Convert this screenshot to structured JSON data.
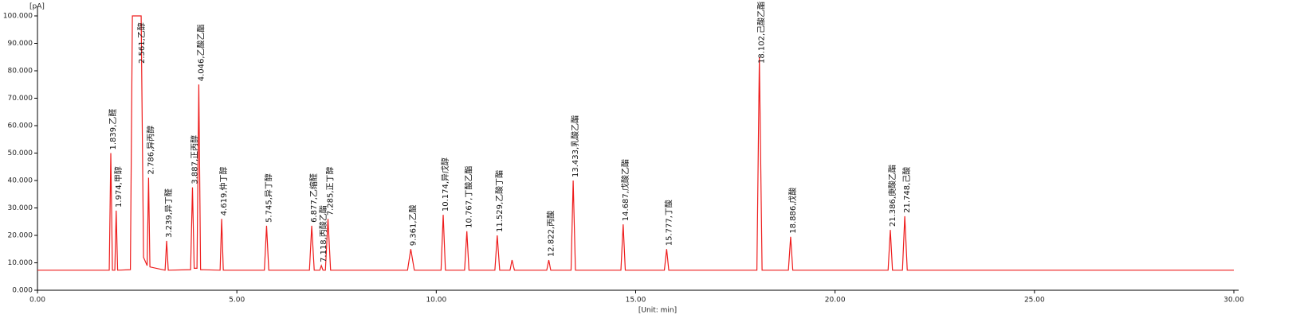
{
  "chart_data": {
    "type": "line",
    "ylabel": "[pA]",
    "xlabel": "[Unit: min]",
    "xlim": [
      0,
      30
    ],
    "ylim": [
      0,
      100
    ],
    "xticks": [
      {
        "value": 0,
        "label": "0.00"
      },
      {
        "value": 5,
        "label": "5.00"
      },
      {
        "value": 10,
        "label": "10.00"
      },
      {
        "value": 15,
        "label": "15.00"
      },
      {
        "value": 20,
        "label": "20.00"
      },
      {
        "value": 25,
        "label": "25.00"
      },
      {
        "value": 30,
        "label": "30.00"
      }
    ],
    "yticks": [
      {
        "value": 0,
        "label": "0.000"
      },
      {
        "value": 10,
        "label": "10.000"
      },
      {
        "value": 20,
        "label": "20.000"
      },
      {
        "value": 30,
        "label": "30.000"
      },
      {
        "value": 40,
        "label": "40.000"
      },
      {
        "value": 50,
        "label": "50.000"
      },
      {
        "value": 60,
        "label": "60.000"
      },
      {
        "value": 70,
        "label": "70.000"
      },
      {
        "value": 80,
        "label": "80.000"
      },
      {
        "value": 90,
        "label": "90.000"
      },
      {
        "value": 100,
        "label": "100.000"
      }
    ],
    "series": [
      {
        "color": "#ee1c1c",
        "x": [
          0,
          1.8,
          1.839,
          1.88,
          1.94,
          1.974,
          2.01,
          2.33,
          2.38,
          2.6,
          2.66,
          2.75,
          2.786,
          2.82,
          3.2,
          3.239,
          3.28,
          3.84,
          3.887,
          3.93,
          4.0,
          4.046,
          4.09,
          4.58,
          4.619,
          4.66,
          5.69,
          5.745,
          5.8,
          6.82,
          6.877,
          6.94,
          7.08,
          7.118,
          7.16,
          7.22,
          7.285,
          7.35,
          9.28,
          9.361,
          9.45,
          10.12,
          10.174,
          10.23,
          10.71,
          10.767,
          10.82,
          11.47,
          11.529,
          11.59,
          11.85,
          11.9,
          11.96,
          12.77,
          12.822,
          12.87,
          13.38,
          13.433,
          13.49,
          14.63,
          14.687,
          14.74,
          15.72,
          15.777,
          15.83,
          18.04,
          18.102,
          18.17,
          18.83,
          18.886,
          18.94,
          21.33,
          21.386,
          21.44,
          21.69,
          21.748,
          21.81,
          30
        ],
        "values": [
          7.3,
          7.3,
          50,
          7.3,
          7.3,
          29,
          7.3,
          7.5,
          100,
          100,
          12,
          9,
          41,
          8.5,
          7.3,
          18,
          7.3,
          7.5,
          37.5,
          8,
          8,
          75,
          7.5,
          7.3,
          26,
          7.3,
          7.3,
          23.5,
          7.3,
          7.3,
          23.5,
          7.3,
          7.3,
          9,
          7.3,
          7.3,
          26,
          7.3,
          7.3,
          15,
          7.3,
          7.3,
          27.5,
          7.3,
          7.3,
          21.5,
          7.3,
          7.3,
          20,
          7.3,
          7.3,
          11,
          7.3,
          7.3,
          11,
          7.3,
          7.3,
          40,
          7.3,
          7.3,
          24,
          7.3,
          7.3,
          15,
          7.3,
          7.3,
          85,
          7.3,
          7.3,
          19.5,
          7.3,
          7.3,
          22,
          7.3,
          7.3,
          27,
          7.3,
          7.3
        ]
      }
    ],
    "annotations": [
      {
        "text": "1.839,乙醛",
        "x": 1.839,
        "y": 50
      },
      {
        "text": "1.974,甲醇",
        "x": 1.974,
        "y": 29
      },
      {
        "text": "2.561,乙醇",
        "x": 2.561,
        "y": 100
      },
      {
        "text": "2.786,异丙醇",
        "x": 2.786,
        "y": 41
      },
      {
        "text": "3.239,异丁醛",
        "x": 3.239,
        "y": 18
      },
      {
        "text": "3.887,正丙醇",
        "x": 3.887,
        "y": 37.5
      },
      {
        "text": "4.046,乙酸乙酯",
        "x": 4.046,
        "y": 75
      },
      {
        "text": "4.619,仲丁醇",
        "x": 4.619,
        "y": 26
      },
      {
        "text": "5.745,异丁醇",
        "x": 5.745,
        "y": 23.5
      },
      {
        "text": "6.877,乙缩醛",
        "x": 6.877,
        "y": 23.5
      },
      {
        "text": "7.118,丙酸乙酯",
        "x": 7.118,
        "y": 9
      },
      {
        "text": "7.285,正丁醇",
        "x": 7.285,
        "y": 26
      },
      {
        "text": "9.361,乙酸",
        "x": 9.361,
        "y": 15
      },
      {
        "text": "10.174,异戊醇",
        "x": 10.174,
        "y": 27.5
      },
      {
        "text": "10.767,丁酸乙酯",
        "x": 10.767,
        "y": 21.5
      },
      {
        "text": "11.529,乙酸丁酯",
        "x": 11.529,
        "y": 20
      },
      {
        "text": "12.822,丙酸",
        "x": 12.822,
        "y": 11
      },
      {
        "text": "13.433,乳酸乙酯",
        "x": 13.433,
        "y": 40
      },
      {
        "text": "14.687,戊酸乙酯",
        "x": 14.687,
        "y": 24
      },
      {
        "text": "15.777,丁酸",
        "x": 15.777,
        "y": 15
      },
      {
        "text": "18.102,己酸乙酯",
        "x": 18.102,
        "y": 85
      },
      {
        "text": "18.886,戊酸",
        "x": 18.886,
        "y": 19.5
      },
      {
        "text": "21.386,庚酸乙酯",
        "x": 21.386,
        "y": 22
      },
      {
        "text": "21.748,己酸",
        "x": 21.748,
        "y": 27
      }
    ]
  }
}
